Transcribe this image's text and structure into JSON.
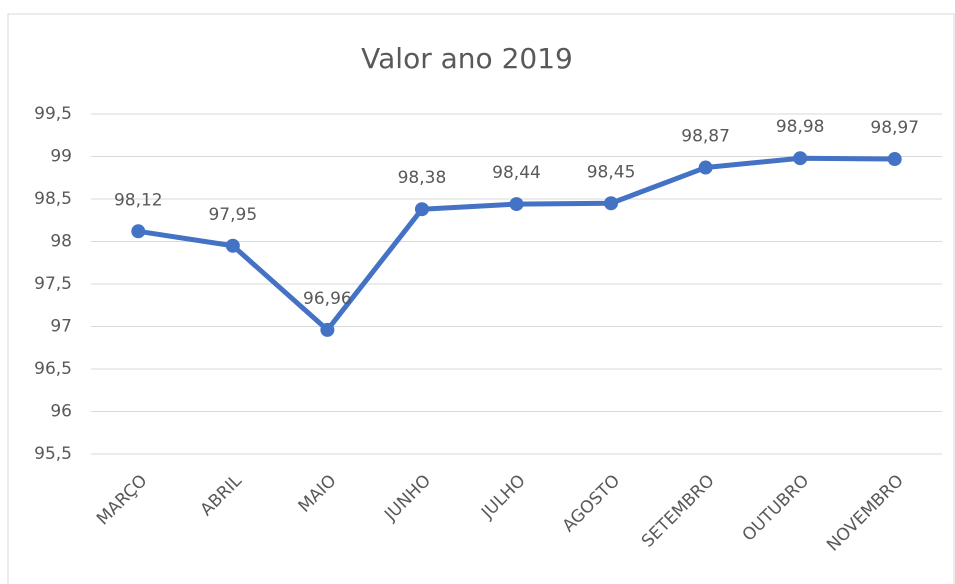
{
  "chart_data": {
    "type": "line",
    "title": "Valor ano 2019",
    "categories": [
      "MARÇO",
      "ABRIL",
      "MAIO",
      "JUNHO",
      "JULHO",
      "AGOSTO",
      "SETEMBRO",
      "OUTUBRO",
      "NOVEMBRO"
    ],
    "series": [
      {
        "name": "Valor",
        "color": "#4472c4",
        "values": [
          98.12,
          97.95,
          96.96,
          98.38,
          98.44,
          98.45,
          98.87,
          98.98,
          98.97
        ],
        "value_labels": [
          "98,12",
          "97,95",
          "96,96",
          "98,38",
          "98,44",
          "98,45",
          "98,87",
          "98,98",
          "98,97"
        ]
      }
    ],
    "ylim": [
      95.5,
      99.5
    ],
    "yticks": [
      {
        "value": 95.5,
        "label": "95,5"
      },
      96,
      {
        "value": 96.5,
        "label": "96,5"
      },
      97,
      {
        "value": 97.5,
        "label": "97,5"
      },
      98,
      {
        "value": 98.5,
        "label": "98,5"
      },
      99,
      {
        "value": 99.5,
        "label": "99,5"
      }
    ],
    "grid": true
  }
}
